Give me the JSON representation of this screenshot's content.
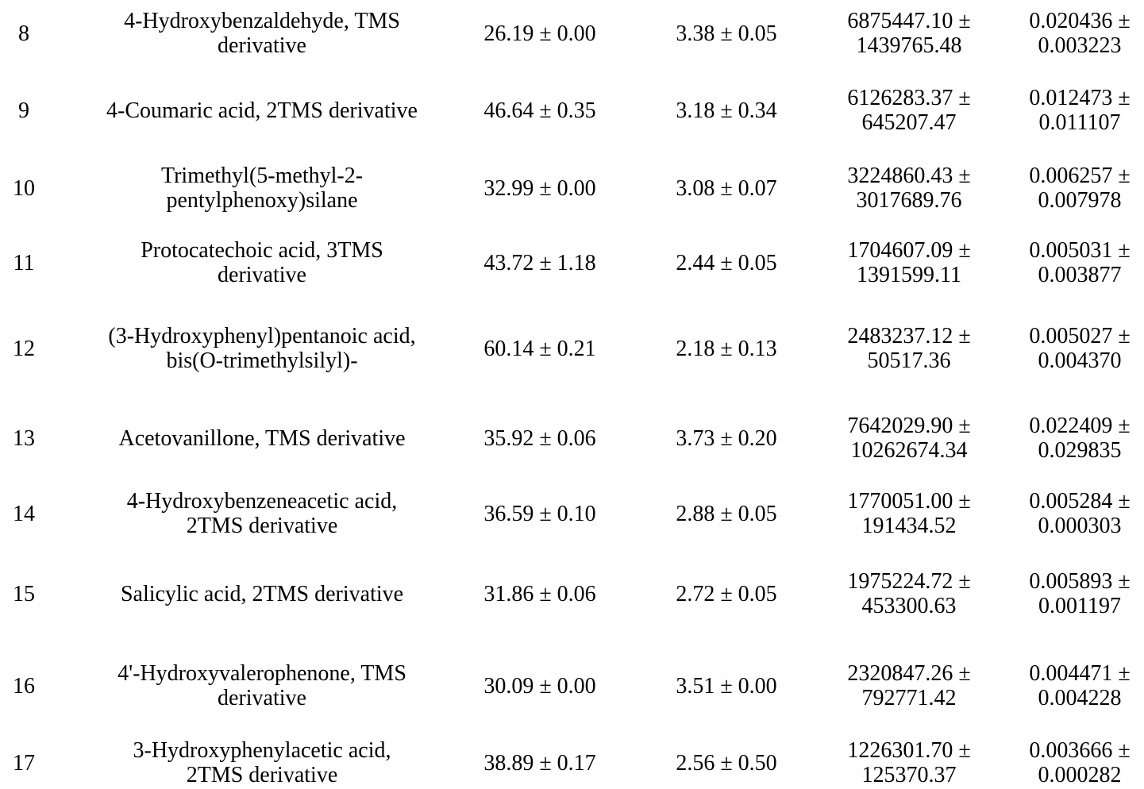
{
  "rows": [
    {
      "num": "8",
      "name": [
        "4-Hydroxybenzaldehyde, TMS",
        "derivative"
      ],
      "a": "26.19 ± 0.00",
      "b": "3.38 ± 0.05",
      "c": [
        "6875447.10 ±",
        "1439765.48"
      ],
      "d": [
        "0.020436 ±",
        "0.003223"
      ]
    },
    {
      "num": "9",
      "name": [
        "4-Coumaric acid, 2TMS derivative"
      ],
      "a": "46.64 ± 0.35",
      "b": "3.18 ± 0.34",
      "c": [
        "6126283.37 ±",
        "645207.47"
      ],
      "d": [
        "0.012473 ±",
        "0.011107"
      ]
    },
    {
      "num": "10",
      "name": [
        "Trimethyl(5-methyl-2-",
        "pentylphenoxy)silane"
      ],
      "a": "32.99 ± 0.00",
      "b": "3.08 ± 0.07",
      "c": [
        "3224860.43 ±",
        "3017689.76"
      ],
      "d": [
        "0.006257 ±",
        "0.007978"
      ]
    },
    {
      "num": "11",
      "name": [
        "Protocatechoic acid, 3TMS",
        "derivative"
      ],
      "a": "43.72 ± 1.18",
      "b": "2.44 ± 0.05",
      "c": [
        "1704607.09 ±",
        "1391599.11"
      ],
      "d": [
        "0.005031 ±",
        "0.003877"
      ]
    },
    {
      "num": "12",
      "name": [
        "(3-Hydroxyphenyl)pentanoic acid,",
        "bis(O-trimethylsilyl)-"
      ],
      "a": "60.14 ± 0.21",
      "b": "2.18 ± 0.13",
      "c": [
        "2483237.12 ±",
        "50517.36"
      ],
      "d": [
        "0.005027 ±",
        "0.004370"
      ]
    },
    {
      "num": "13",
      "name": [
        "Acetovanillone, TMS derivative"
      ],
      "a": "35.92 ± 0.06",
      "b": "3.73 ± 0.20",
      "c": [
        "7642029.90 ±",
        "10262674.34"
      ],
      "d": [
        "0.022409 ±",
        "0.029835"
      ]
    },
    {
      "num": "14",
      "name": [
        "4-Hydroxybenzeneacetic acid,",
        "2TMS derivative"
      ],
      "a": "36.59 ± 0.10",
      "b": "2.88 ± 0.05",
      "c": [
        "1770051.00 ±",
        "191434.52"
      ],
      "d": [
        "0.005284 ±",
        "0.000303"
      ]
    },
    {
      "num": "15",
      "name": [
        "Salicylic acid, 2TMS derivative"
      ],
      "a": "31.86 ± 0.06",
      "b": "2.72 ± 0.05",
      "c": [
        "1975224.72 ±",
        "453300.63"
      ],
      "d": [
        "0.005893 ±",
        "0.001197"
      ]
    },
    {
      "num": "16",
      "name": [
        "4'-Hydroxyvalerophenone, TMS",
        "derivative"
      ],
      "a": "30.09 ± 0.00",
      "b": "3.51 ± 0.00",
      "c": [
        "2320847.26 ±",
        "792771.42"
      ],
      "d": [
        "0.004471 ±",
        "0.004228"
      ]
    },
    {
      "num": "17",
      "name": [
        "3-Hydroxyphenylacetic acid,",
        "2TMS derivative"
      ],
      "a": "38.89 ± 0.17",
      "b": "2.56 ± 0.50",
      "c": [
        "1226301.70 ±",
        "125370.37"
      ],
      "d": [
        "0.003666 ±",
        "0.000282"
      ]
    }
  ]
}
